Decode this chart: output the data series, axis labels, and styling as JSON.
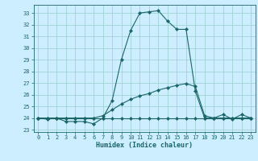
{
  "title": "",
  "xlabel": "Humidex (Indice chaleur)",
  "background_color": "#cceeff",
  "grid_color": "#99cccc",
  "line_color": "#1a6666",
  "xlim": [
    -0.5,
    23.5
  ],
  "ylim": [
    22.8,
    33.7
  ],
  "yticks": [
    23,
    24,
    25,
    26,
    27,
    28,
    29,
    30,
    31,
    32,
    33
  ],
  "xticks": [
    0,
    1,
    2,
    3,
    4,
    5,
    6,
    7,
    8,
    9,
    10,
    11,
    12,
    13,
    14,
    15,
    16,
    17,
    18,
    19,
    20,
    21,
    22,
    23
  ],
  "series1_x": [
    0,
    1,
    2,
    3,
    4,
    5,
    6,
    7,
    8,
    9,
    10,
    11,
    12,
    13,
    14,
    15,
    16,
    17,
    18,
    19,
    20,
    21,
    22,
    23
  ],
  "series1_y": [
    24.0,
    23.9,
    24.0,
    23.7,
    23.7,
    23.7,
    23.5,
    24.0,
    25.5,
    29.0,
    31.5,
    33.0,
    33.1,
    33.2,
    32.3,
    31.6,
    31.6,
    26.3,
    24.0,
    24.0,
    24.3,
    23.9,
    24.3,
    24.0
  ],
  "series2_x": [
    0,
    1,
    2,
    3,
    4,
    5,
    6,
    7,
    8,
    9,
    10,
    11,
    12,
    13,
    14,
    15,
    16,
    17,
    18,
    19,
    20,
    21,
    22,
    23
  ],
  "series2_y": [
    24.0,
    24.0,
    24.0,
    24.0,
    24.0,
    24.0,
    24.0,
    24.0,
    24.0,
    24.0,
    24.0,
    24.0,
    24.0,
    24.0,
    24.0,
    24.0,
    24.0,
    24.0,
    24.0,
    24.0,
    24.0,
    24.0,
    24.0,
    24.0
  ],
  "series3_x": [
    0,
    1,
    2,
    3,
    4,
    5,
    6,
    7,
    8,
    9,
    10,
    11,
    12,
    13,
    14,
    15,
    16,
    17,
    18,
    19,
    20,
    21,
    22,
    23
  ],
  "series3_y": [
    24.0,
    24.0,
    24.0,
    24.0,
    24.0,
    24.0,
    24.0,
    24.2,
    24.7,
    25.2,
    25.6,
    25.9,
    26.1,
    26.4,
    26.6,
    26.8,
    26.95,
    26.7,
    24.2,
    24.0,
    24.0,
    24.0,
    24.0,
    24.0
  ]
}
